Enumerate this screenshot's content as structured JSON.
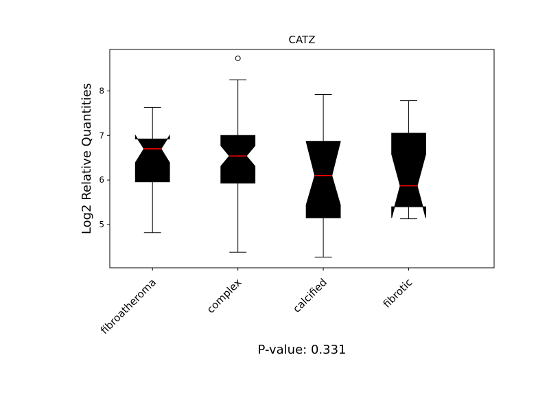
{
  "chart_data": {
    "type": "boxplot",
    "notched": true,
    "title": "CATZ",
    "ylabel": "Log2 Relative Quantities",
    "xlabel": "",
    "annotation": "P-value: 0.331",
    "ylim": [
      4.03,
      8.93
    ],
    "yticks": [
      5,
      6,
      7,
      8
    ],
    "grid": false,
    "colors": {
      "box": "#000000",
      "median": "#ff0000",
      "whisker": "#000000"
    },
    "categories": [
      "fibroatheroma",
      "complex",
      "calcified",
      "fibrotic"
    ],
    "boxes": [
      {
        "name": "fibroatheroma",
        "whislo": 4.82,
        "q1": 5.96,
        "med": 6.7,
        "q3": 6.92,
        "whishi": 7.63,
        "notch_lo": 6.39,
        "notch_hi": 7.0,
        "fliers": []
      },
      {
        "name": "complex",
        "whislo": 4.38,
        "q1": 5.93,
        "med": 6.54,
        "q3": 7.0,
        "whishi": 8.25,
        "notch_lo": 6.31,
        "notch_hi": 6.77,
        "fliers": [
          8.73
        ]
      },
      {
        "name": "calcified",
        "whislo": 4.27,
        "q1": 5.15,
        "med": 6.1,
        "q3": 6.87,
        "whishi": 7.92,
        "notch_lo": 5.44,
        "notch_hi": 6.86,
        "fliers": []
      },
      {
        "name": "fibrotic",
        "whislo": 5.13,
        "q1": 5.4,
        "med": 5.87,
        "q3": 7.05,
        "whishi": 7.78,
        "notch_lo": 5.15,
        "notch_hi": 6.58,
        "fliers": []
      }
    ]
  }
}
